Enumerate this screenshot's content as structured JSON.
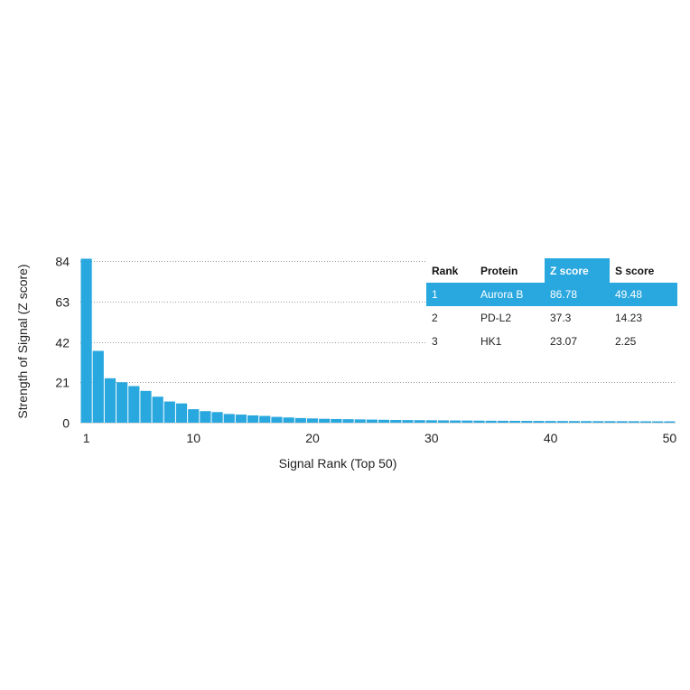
{
  "chart_data": {
    "type": "bar",
    "xlabel": "Signal Rank (Top 50)",
    "ylabel": "Strength of Signal (Z score)",
    "ylim": [
      0,
      84
    ],
    "yticks": [
      0,
      21,
      42,
      63,
      84
    ],
    "xticks": [
      1,
      10,
      20,
      30,
      40,
      50
    ],
    "grid": "horizontal dotted",
    "bar_color": "#29a7df",
    "values": [
      86.78,
      37.3,
      23.07,
      21,
      19,
      16.5,
      13.5,
      11,
      10,
      7,
      6,
      5.5,
      4.5,
      4.2,
      3.8,
      3.5,
      3,
      2.7,
      2.4,
      2.2,
      2.0,
      1.9,
      1.8,
      1.7,
      1.6,
      1.5,
      1.4,
      1.35,
      1.3,
      1.25,
      1.2,
      1.15,
      1.1,
      1.05,
      1.0,
      0.98,
      0.95,
      0.92,
      0.9,
      0.88,
      0.86,
      0.84,
      0.82,
      0.8,
      0.78,
      0.76,
      0.74,
      0.72,
      0.7,
      0.68
    ]
  },
  "table": {
    "headers": [
      "Rank",
      "Protein",
      "Z score",
      "S score"
    ],
    "rows": [
      {
        "rank": "1",
        "protein": "Aurora B",
        "z": "86.78",
        "s": "49.48"
      },
      {
        "rank": "2",
        "protein": "PD-L2",
        "z": "37.3",
        "s": "14.23"
      },
      {
        "rank": "3",
        "protein": "HK1",
        "z": "23.07",
        "s": "2.25"
      }
    ]
  }
}
